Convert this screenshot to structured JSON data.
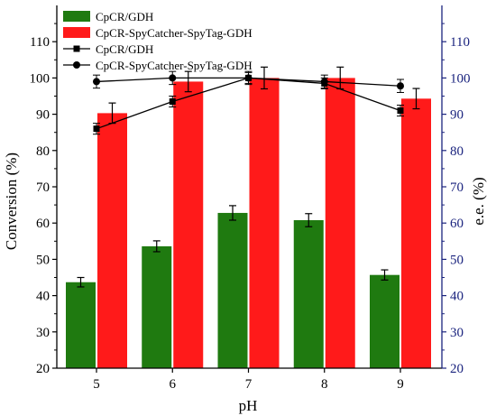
{
  "chart_data": {
    "type": "bar+line",
    "categories": [
      "5",
      "6",
      "7",
      "8",
      "9"
    ],
    "xlabel": "pH",
    "ylabel_left": "Conversion (%)",
    "ylabel_right": "e.e. (%)",
    "ylim_left": [
      20,
      120
    ],
    "ylim_right": [
      20,
      120
    ],
    "yticks": [
      20,
      30,
      40,
      50,
      60,
      70,
      80,
      90,
      100,
      110
    ],
    "bar_series": [
      {
        "name": "CpCR/GDH",
        "color": "#1f7a10",
        "values": [
          43.7,
          53.6,
          62.8,
          60.8,
          45.7
        ],
        "errors": [
          1.3,
          1.5,
          2.0,
          1.8,
          1.4
        ]
      },
      {
        "name": "CpCR-SpyCatcher-SpyTag-GDH",
        "color": "#ff1a1a",
        "values": [
          90.3,
          99.0,
          100.0,
          100.0,
          94.3
        ],
        "errors": [
          2.8,
          2.8,
          3.0,
          3.0,
          2.8
        ]
      }
    ],
    "line_series": [
      {
        "name": "CpCR/GDH",
        "marker": "square",
        "values": [
          86.0,
          93.5,
          100.0,
          98.5,
          91.0
        ],
        "errors": [
          1.5,
          1.5,
          1.5,
          1.5,
          1.5
        ]
      },
      {
        "name": "CpCR-SpyCatcher-SpyTag-GDH",
        "marker": "circle",
        "values": [
          99.0,
          100.0,
          100.0,
          99.0,
          97.8
        ],
        "errors": [
          1.8,
          1.8,
          1.8,
          1.8,
          1.8
        ]
      }
    ],
    "legend_position": "top-left",
    "right_axis_color": "#1a237e"
  }
}
